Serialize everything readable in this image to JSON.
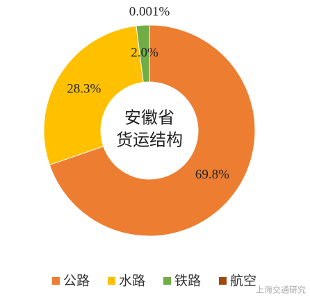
{
  "chart_data": {
    "type": "donut",
    "title_lines": [
      "安徽省",
      "货运结构"
    ],
    "categories": [
      "公路",
      "水路",
      "铁路",
      "航空"
    ],
    "values": [
      69.8,
      28.3,
      2.0,
      0.001
    ],
    "value_labels": [
      "69.8%",
      "28.3%",
      "2.0%",
      "0.001%"
    ],
    "colors": [
      "#ED7D31",
      "#FFC000",
      "#70AD47",
      "#9E480E"
    ],
    "legend": "bottom"
  },
  "watermark": "上海交通研究"
}
